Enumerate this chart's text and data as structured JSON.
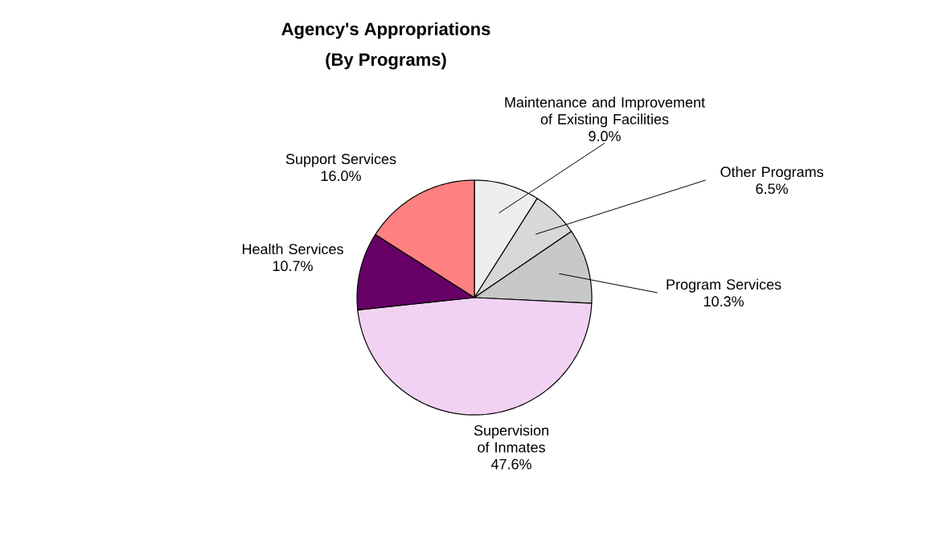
{
  "chart_data": {
    "type": "pie",
    "title": "Agency's Appropriations",
    "subtitle": "(By Programs)",
    "categories": [
      "Maintenance and Improvement of Existing Facilities",
      "Other Programs",
      "Program Services",
      "Supervision of Inmates",
      "Health Services",
      "Support Services"
    ],
    "values": [
      9.0,
      6.5,
      10.3,
      47.6,
      10.7,
      16.0
    ],
    "value_labels": [
      "9.0%",
      "6.5%",
      "10.3%",
      "47.6%",
      "10.7%",
      "16.0%"
    ],
    "colors": [
      "#eeeeee",
      "#d8d8d8",
      "#c8c8c8",
      "#f2d2f2",
      "#660066",
      "#ff8080"
    ]
  }
}
